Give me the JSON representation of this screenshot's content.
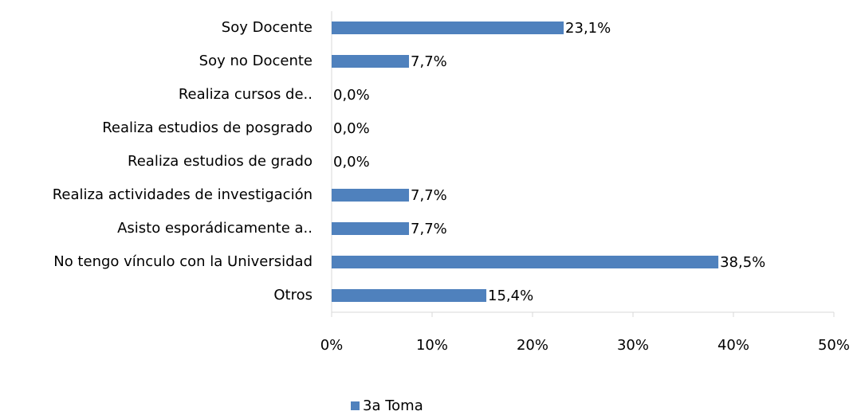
{
  "chart_data": {
    "type": "bar",
    "orientation": "horizontal",
    "categories": [
      "Soy Docente",
      "Soy no Docente",
      "Realiza cursos de..",
      "Realiza estudios de posgrado",
      "Realiza estudios de grado",
      "Realiza actividades de investigación",
      "Asisto esporádicamente a..",
      "No tengo vínculo con la Universidad",
      "Otros"
    ],
    "series": [
      {
        "name": "3a Toma",
        "color": "#4f81bd",
        "values": [
          23.1,
          7.7,
          0,
          0,
          0,
          7.7,
          7.7,
          38.5,
          15.4
        ],
        "value_labels": [
          "23,1%",
          "7,7%",
          "0,0%",
          "0,0%",
          "0,0%",
          "7,7%",
          "7,7%",
          "38,5%",
          "15,4%"
        ]
      }
    ],
    "xlim": [
      0,
      50
    ],
    "xticks": [
      {
        "value": 0,
        "label": "0%"
      },
      {
        "value": 10,
        "label": "10%"
      },
      {
        "value": 20,
        "label": "20%"
      },
      {
        "value": 30,
        "label": "30%"
      },
      {
        "value": 40,
        "label": "40%"
      },
      {
        "value": 50,
        "label": "50%"
      }
    ],
    "legend": "bottom"
  }
}
